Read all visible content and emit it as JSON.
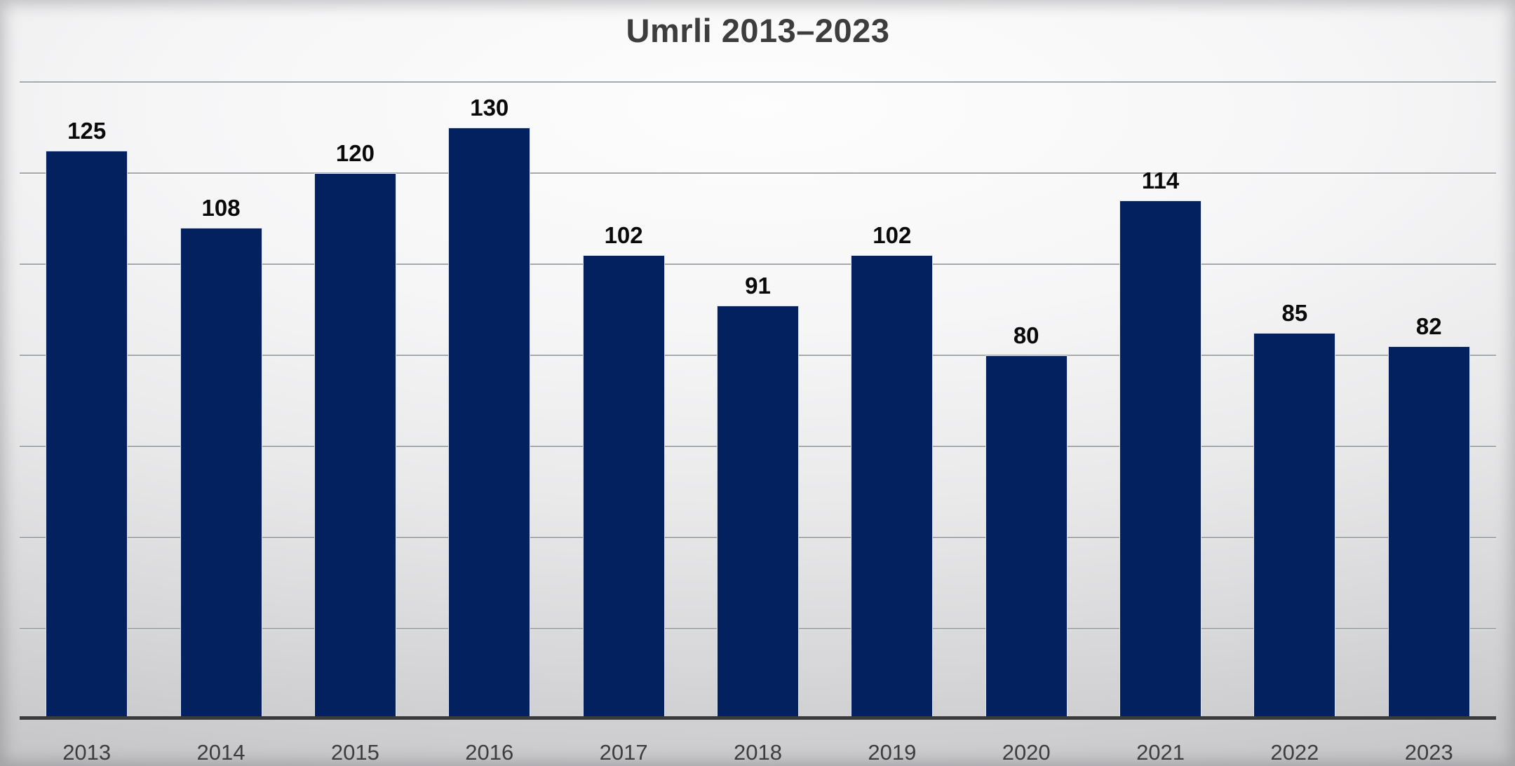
{
  "chart_data": {
    "type": "bar",
    "title": "Umrli 2013–2023",
    "categories": [
      "2013",
      "2014",
      "2015",
      "2016",
      "2017",
      "2018",
      "2019",
      "2020",
      "2021",
      "2022",
      "2023"
    ],
    "values": [
      125,
      108,
      120,
      130,
      102,
      91,
      102,
      80,
      114,
      85,
      82
    ],
    "xlabel": "",
    "ylabel": "",
    "ylim": [
      0,
      145
    ],
    "gridlines": [
      20,
      40,
      60,
      80,
      100,
      120,
      140
    ],
    "grid": true,
    "legend_position": "none",
    "data_labels": true
  },
  "colors": {
    "bar_fill": "#02215e",
    "bar_border": "#d9e3f1",
    "axis_line": "#3a3a3a",
    "gridline": "#a6a9ab",
    "title_text": "#3d3d3d",
    "value_label": "#0a0a0a",
    "category_label": "#3d3d3d"
  }
}
